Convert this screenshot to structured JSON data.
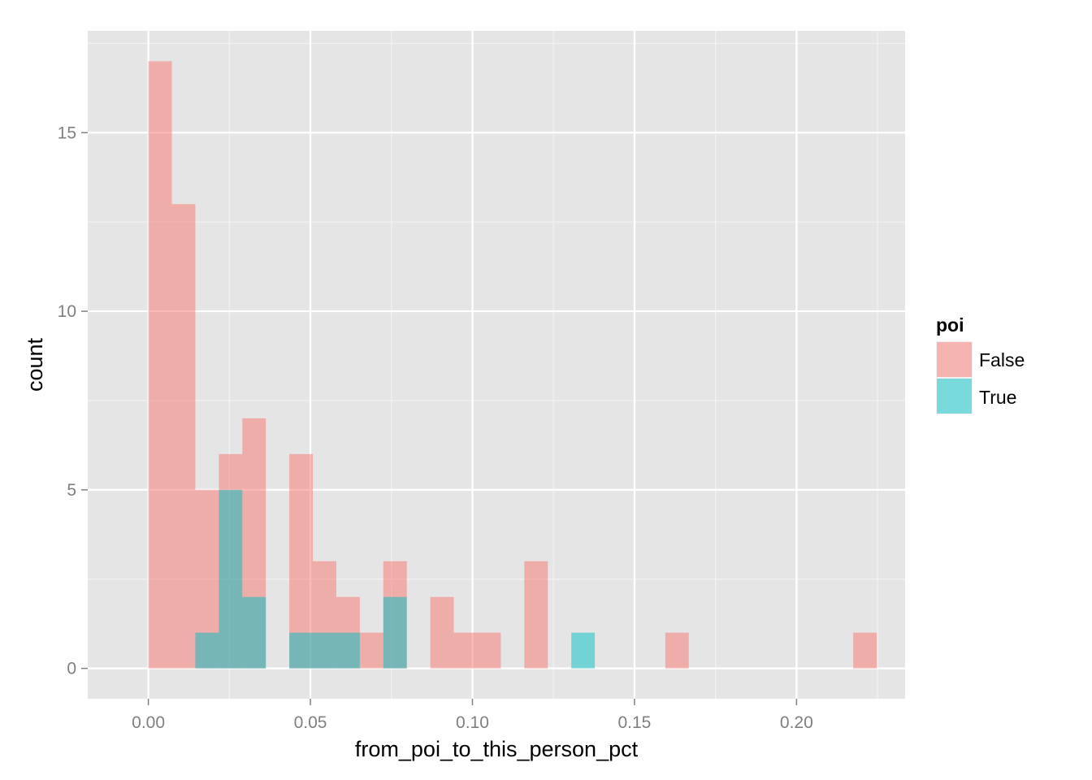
{
  "chart_data": {
    "type": "histogram",
    "xlabel": "from_poi_to_this_person_pct",
    "ylabel": "count",
    "xlim": [
      -0.0187,
      0.2335
    ],
    "ylim": [
      -0.85,
      17.85
    ],
    "xticks": [
      {
        "value": 0.0,
        "label": "0.00"
      },
      {
        "value": 0.05,
        "label": "0.05"
      },
      {
        "value": 0.1,
        "label": "0.10"
      },
      {
        "value": 0.15,
        "label": "0.15"
      },
      {
        "value": 0.2,
        "label": "0.20"
      }
    ],
    "yticks": [
      {
        "value": 0,
        "label": "0"
      },
      {
        "value": 5,
        "label": "5"
      },
      {
        "value": 10,
        "label": "10"
      },
      {
        "value": 15,
        "label": "15"
      }
    ],
    "minor_x": [
      0.025,
      0.075,
      0.125,
      0.175,
      0.225
    ],
    "minor_y": [
      2.5,
      7.5,
      12.5,
      17.5
    ],
    "grid": true,
    "bin_start": 0.0,
    "bin_width": 0.00725,
    "legend": {
      "title": "poi",
      "position": "right",
      "entries": [
        {
          "label": "False",
          "color": "#F8766D"
        },
        {
          "label": "True",
          "color": "#00BFC4"
        }
      ]
    },
    "series": [
      {
        "name": "False",
        "color": "#F8766D",
        "opacity": 0.5,
        "bins": [
          {
            "bin": 0,
            "count": 17
          },
          {
            "bin": 1,
            "count": 13
          },
          {
            "bin": 2,
            "count": 5
          },
          {
            "bin": 3,
            "count": 6
          },
          {
            "bin": 4,
            "count": 7
          },
          {
            "bin": 6,
            "count": 6
          },
          {
            "bin": 7,
            "count": 3
          },
          {
            "bin": 8,
            "count": 2
          },
          {
            "bin": 9,
            "count": 1
          },
          {
            "bin": 10,
            "count": 3
          },
          {
            "bin": 12,
            "count": 2
          },
          {
            "bin": 13,
            "count": 1
          },
          {
            "bin": 14,
            "count": 1
          },
          {
            "bin": 16,
            "count": 3
          },
          {
            "bin": 22,
            "count": 1
          },
          {
            "bin": 30,
            "count": 1
          }
        ]
      },
      {
        "name": "True",
        "color": "#00BFC4",
        "opacity": 0.5,
        "bins": [
          {
            "bin": 2,
            "count": 1
          },
          {
            "bin": 3,
            "count": 5
          },
          {
            "bin": 4,
            "count": 2
          },
          {
            "bin": 6,
            "count": 1
          },
          {
            "bin": 7,
            "count": 1
          },
          {
            "bin": 8,
            "count": 1
          },
          {
            "bin": 10,
            "count": 2
          },
          {
            "bin": 18,
            "count": 1
          }
        ]
      }
    ]
  }
}
